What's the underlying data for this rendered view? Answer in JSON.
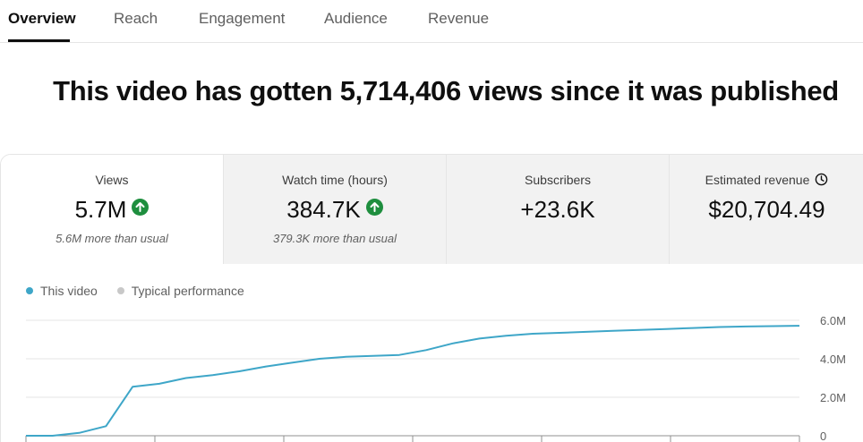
{
  "tabs": [
    {
      "label": "Overview",
      "active": true
    },
    {
      "label": "Reach",
      "active": false
    },
    {
      "label": "Engagement",
      "active": false
    },
    {
      "label": "Audience",
      "active": false
    },
    {
      "label": "Revenue",
      "active": false
    }
  ],
  "headline": "This video has gotten 5,714,406 views since it was published",
  "metrics": [
    {
      "label": "Views",
      "value": "5.7M",
      "trend": "up",
      "note": "5.6M more than usual",
      "selected": true
    },
    {
      "label": "Watch time (hours)",
      "value": "384.7K",
      "trend": "up",
      "note": "379.3K more than usual",
      "selected": false
    },
    {
      "label": "Subscribers",
      "value": "+23.6K",
      "note": "",
      "selected": false
    },
    {
      "label": "Estimated revenue",
      "value": "$20,704.49",
      "note": "",
      "icon": "clock-icon",
      "selected": false
    }
  ],
  "legend": {
    "this_video": "This video",
    "typical": "Typical performance"
  },
  "colors": {
    "series": "#3ea6c8",
    "typical": "#c8c8c8",
    "up": "#1e8e3e"
  },
  "chart_data": {
    "type": "line",
    "y_ticks": [
      "0",
      "2.0M",
      "4.0M",
      "6.0M"
    ],
    "ylim": [
      0,
      6000000
    ],
    "series": [
      {
        "name": "This video",
        "values": [
          0,
          0,
          150000,
          500000,
          2550000,
          2700000,
          3000000,
          3150000,
          3350000,
          3600000,
          3800000,
          4000000,
          4100000,
          4150000,
          4200000,
          4450000,
          4800000,
          5050000,
          5200000,
          5300000,
          5350000,
          5400000,
          5450000,
          5500000,
          5550000,
          5600000,
          5650000,
          5680000,
          5700000,
          5714406
        ]
      }
    ]
  }
}
